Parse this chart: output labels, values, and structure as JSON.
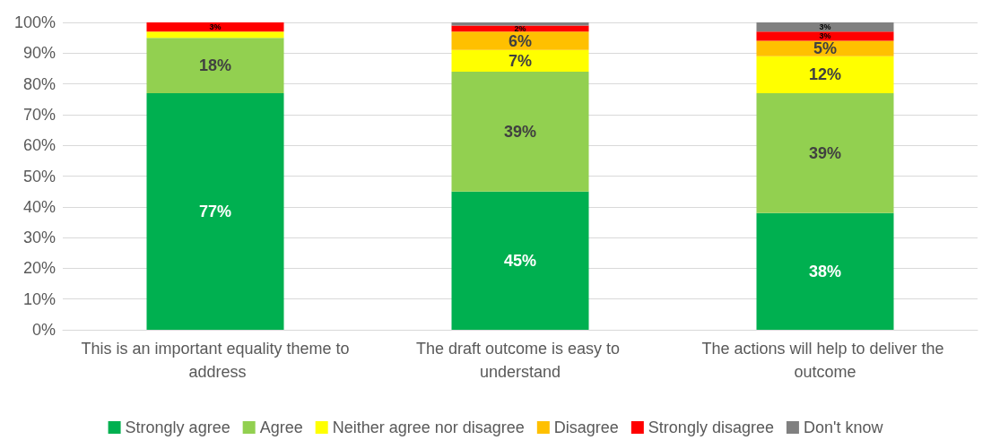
{
  "chart_data": {
    "type": "bar",
    "stacked": true,
    "grid": "y",
    "legend": "bottom",
    "categories": [
      "This is an important equality theme to address",
      "The draft outcome is easy to understand",
      "The actions will help to deliver the outcome"
    ],
    "ylim": [
      0,
      100
    ],
    "yticks": [
      {
        "value": 0,
        "label": "0%"
      },
      {
        "value": 10,
        "label": "10%"
      },
      {
        "value": 20,
        "label": "20%"
      },
      {
        "value": 30,
        "label": "30%"
      },
      {
        "value": 40,
        "label": "40%"
      },
      {
        "value": 50,
        "label": "50%"
      },
      {
        "value": 60,
        "label": "60%"
      },
      {
        "value": 70,
        "label": "70%"
      },
      {
        "value": 80,
        "label": "80%"
      },
      {
        "value": 90,
        "label": "90%"
      },
      {
        "value": 100,
        "label": "100%"
      }
    ],
    "series": [
      {
        "name": "Strongly agree",
        "color": "#00b050",
        "values": [
          77,
          45,
          38
        ],
        "value_labels": [
          "77%",
          "45%",
          "38%"
        ]
      },
      {
        "name": "Agree",
        "color": "#92d050",
        "values": [
          18,
          39,
          39
        ],
        "value_labels": [
          "18%",
          "39%",
          "39%"
        ]
      },
      {
        "name": "Neither agree nor disagree",
        "color": "#ffff00",
        "values": [
          2,
          7,
          12
        ],
        "value_labels": [
          null,
          "7%",
          "12%"
        ]
      },
      {
        "name": "Disagree",
        "color": "#ffc000",
        "values": [
          0,
          6,
          5
        ],
        "value_labels": [
          null,
          "6%",
          "5%"
        ]
      },
      {
        "name": "Strongly disagree",
        "color": "#ff0000",
        "values": [
          3,
          2,
          3
        ],
        "value_labels": [
          "3%",
          "2%",
          "3%"
        ]
      },
      {
        "name": "Don't know",
        "color": "#808080",
        "values": [
          0,
          1,
          3
        ],
        "value_labels": [
          null,
          null,
          "3%"
        ]
      }
    ]
  }
}
